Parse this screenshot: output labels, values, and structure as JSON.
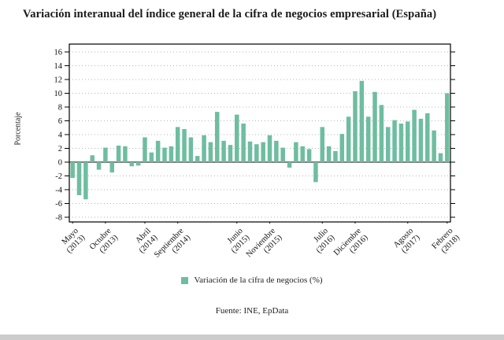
{
  "title": "Variación interanual del índice general de la cifra de negocios empresarial (España)",
  "ylabel": "Porcentaje",
  "source": "Fuente: INE, EpData",
  "colors": {
    "bar": "#6fbda1",
    "grid": "#b5b5b5",
    "zero_line": "#333333",
    "frame": "#000000",
    "tick_text": "#111111"
  },
  "chart_data": {
    "type": "bar",
    "title": "Variación interanual del índice general de la cifra de negocios empresarial (España)",
    "xlabel": "",
    "ylabel": "Porcentaje",
    "ylim": [
      -8,
      16
    ],
    "ytick_step": 2,
    "grid": "dotted-horizontal",
    "legend_position": "bottom-center",
    "legend_label": "Variación de la cifra de negocios (%)",
    "x": [
      "2013-05",
      "2013-06",
      "2013-07",
      "2013-08",
      "2013-09",
      "2013-10",
      "2013-11",
      "2013-12",
      "2014-01",
      "2014-02",
      "2014-03",
      "2014-04",
      "2014-05",
      "2014-06",
      "2014-07",
      "2014-08",
      "2014-09",
      "2014-10",
      "2014-11",
      "2014-12",
      "2015-01",
      "2015-02",
      "2015-03",
      "2015-04",
      "2015-05",
      "2015-06",
      "2015-07",
      "2015-08",
      "2015-09",
      "2015-10",
      "2015-11",
      "2015-12",
      "2016-01",
      "2016-02",
      "2016-03",
      "2016-04",
      "2016-05",
      "2016-06",
      "2016-07",
      "2016-08",
      "2016-09",
      "2016-10",
      "2016-11",
      "2016-12",
      "2017-01",
      "2017-02",
      "2017-03",
      "2017-04",
      "2017-05",
      "2017-06",
      "2017-07",
      "2017-08",
      "2017-09",
      "2017-10",
      "2017-11",
      "2017-12",
      "2018-01",
      "2018-02"
    ],
    "values": [
      -2.3,
      -4.8,
      -5.4,
      1.0,
      -1.1,
      2.1,
      -1.5,
      2.4,
      2.3,
      -0.6,
      -0.5,
      3.6,
      1.4,
      3.1,
      2.1,
      2.3,
      5.1,
      4.8,
      3.6,
      0.9,
      3.9,
      2.9,
      7.3,
      3.1,
      2.5,
      6.9,
      5.6,
      3.0,
      2.6,
      2.9,
      3.9,
      3.1,
      2.1,
      -0.8,
      2.9,
      2.3,
      1.9,
      -2.9,
      5.1,
      2.3,
      1.6,
      4.1,
      6.6,
      10.3,
      11.8,
      6.6,
      10.2,
      8.3,
      5.1,
      6.1,
      5.6,
      5.9,
      7.6,
      6.3,
      7.1,
      4.6,
      1.3,
      10.0
    ],
    "xticks": [
      {
        "index": 0,
        "month": "Mayo",
        "year": "(2013)"
      },
      {
        "index": 5,
        "month": "Octubre",
        "year": "(2013)"
      },
      {
        "index": 11,
        "month": "Abril",
        "year": "(2014)"
      },
      {
        "index": 16,
        "month": "Septiembre",
        "year": "(2014)"
      },
      {
        "index": 25,
        "month": "Junio",
        "year": "(2015)"
      },
      {
        "index": 30,
        "month": "Noviembre",
        "year": "(2015)"
      },
      {
        "index": 38,
        "month": "Julio",
        "year": "(2016)"
      },
      {
        "index": 43,
        "month": "Diciembre",
        "year": "(2016)"
      },
      {
        "index": 51,
        "month": "Agosto",
        "year": "(2017)"
      },
      {
        "index": 57,
        "month": "Febrero",
        "year": "(2018)"
      }
    ]
  }
}
